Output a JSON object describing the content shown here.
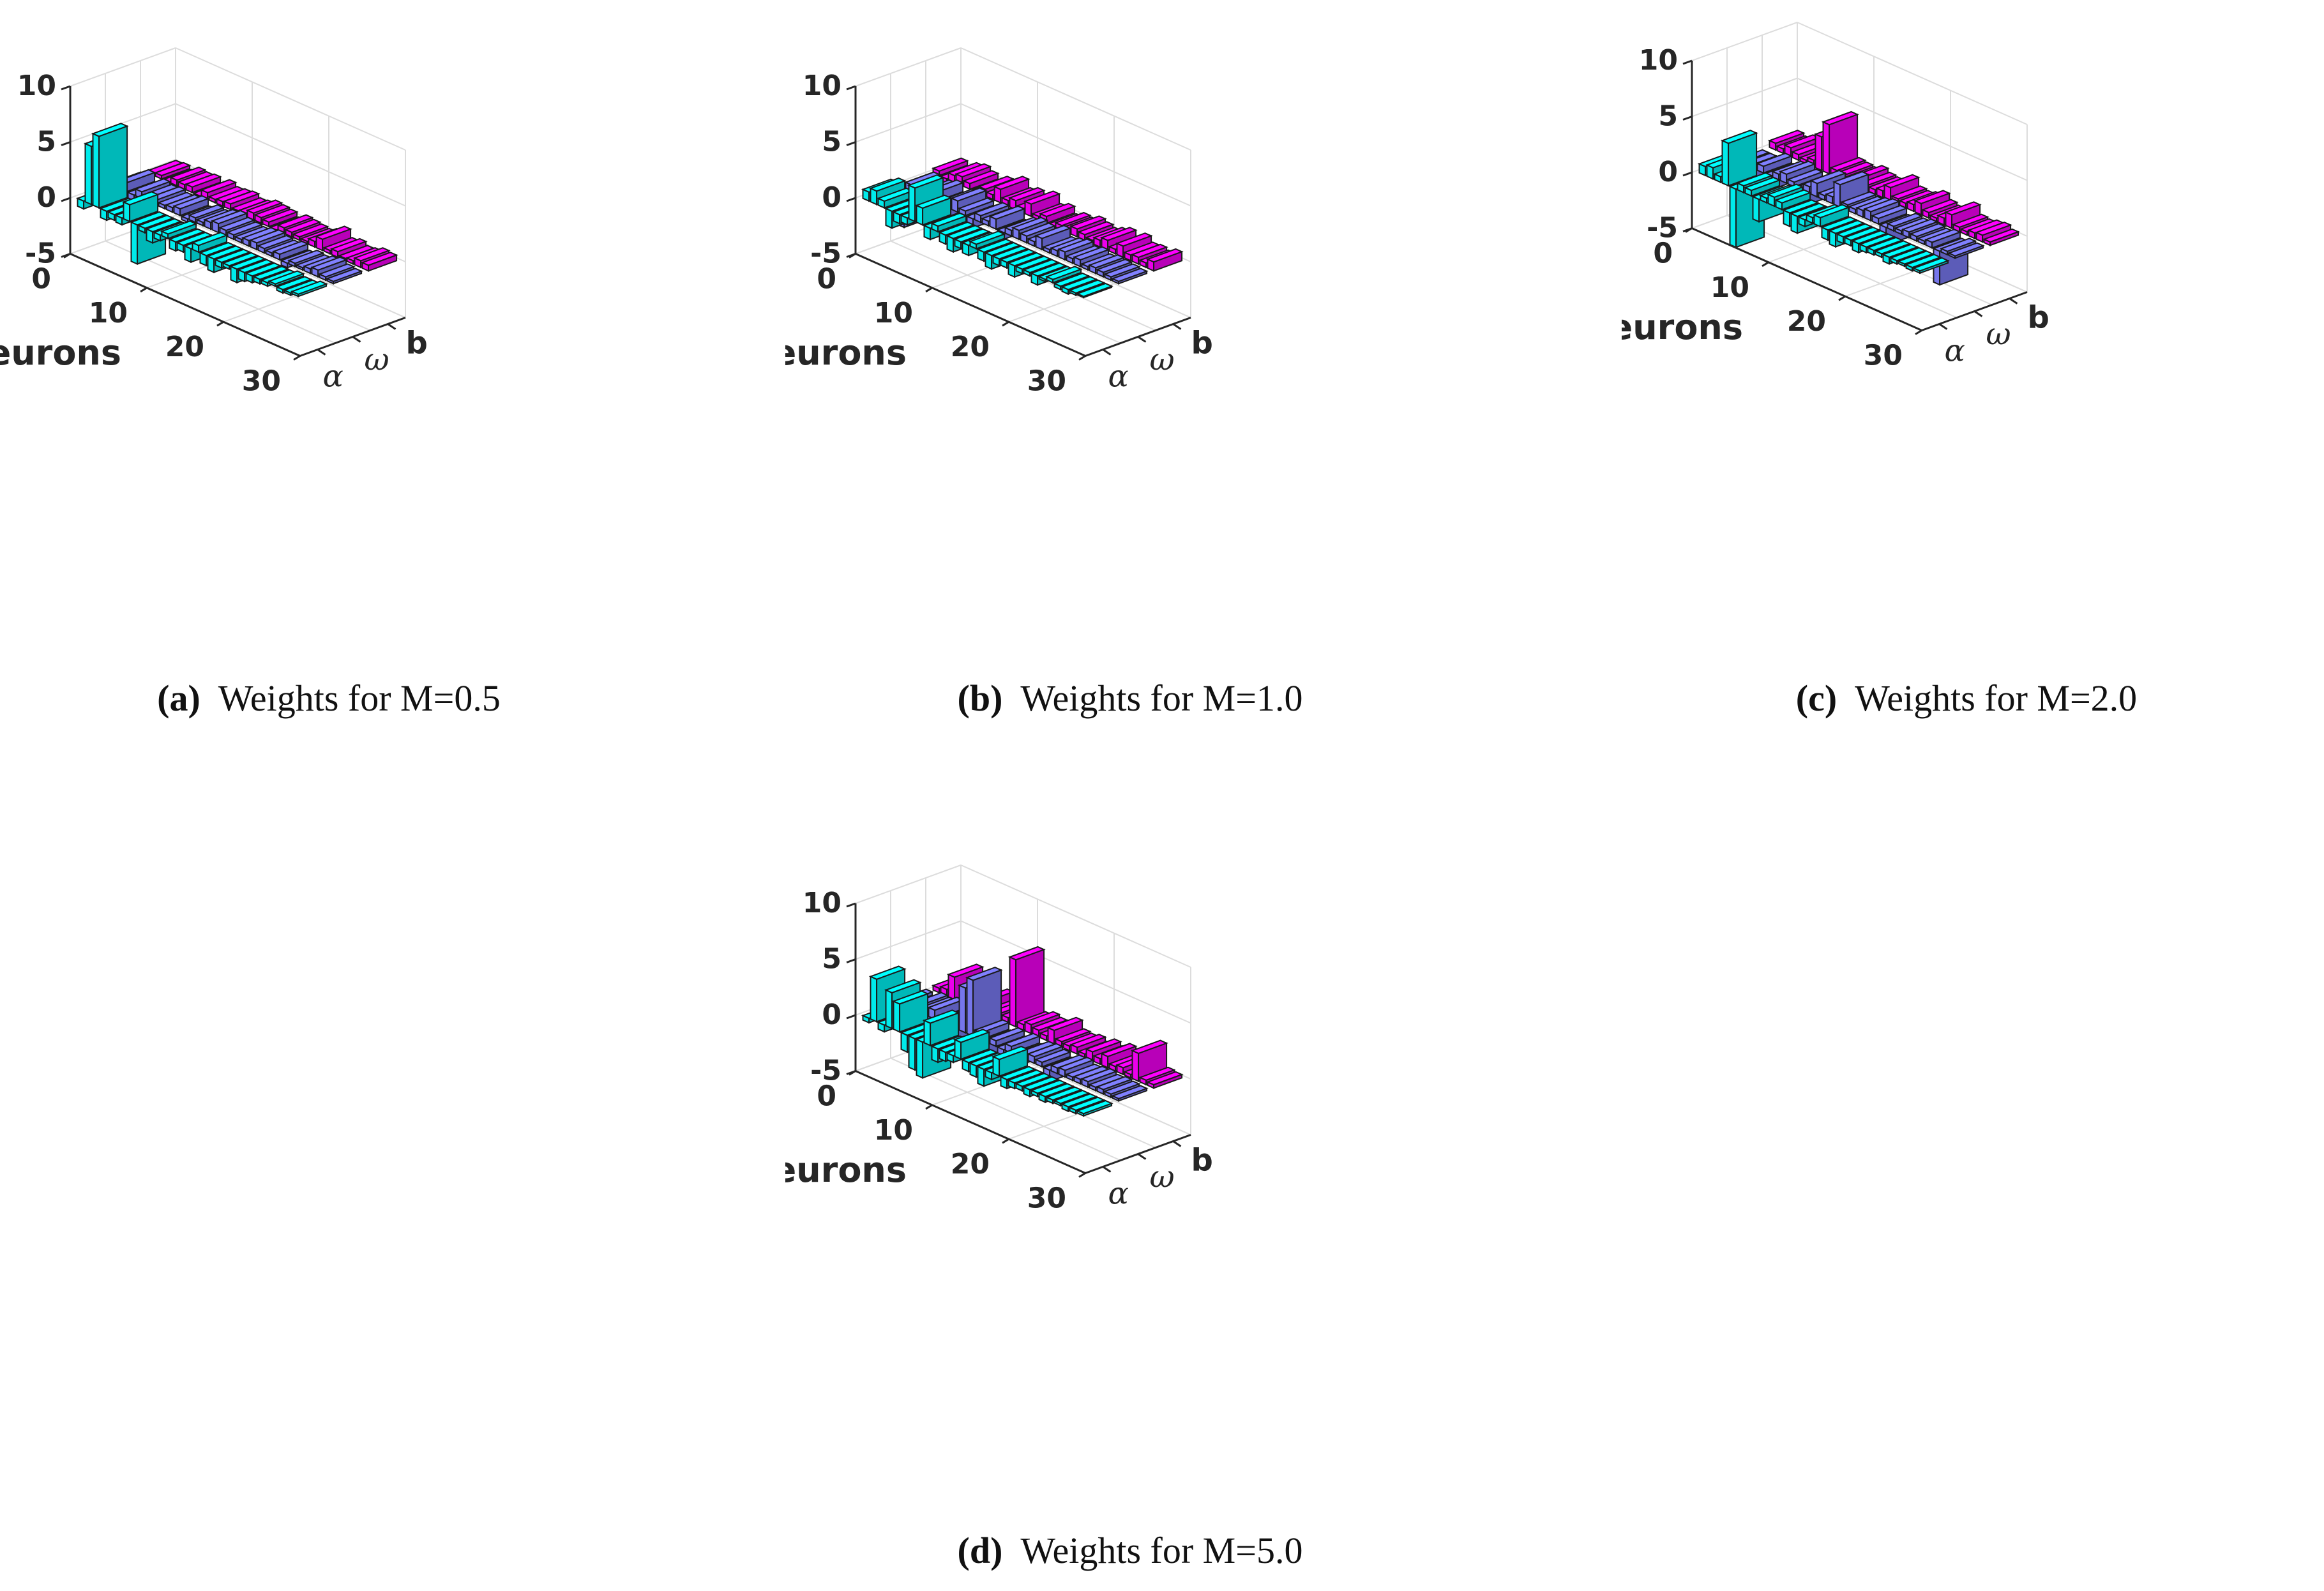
{
  "colors": {
    "magenta": "#ff00ff",
    "purple": "#8080ff",
    "cyan": "#00ffff",
    "axis": "#262626",
    "grid": "#dcdcdc",
    "edge": "#1a1a1a"
  },
  "chart_data": [
    {
      "type": "bar3d",
      "caption_label": "(a)",
      "caption_text": "Weights for M=0.5",
      "xlabel": "Neurons",
      "x_ticks": [
        "0",
        "10",
        "20",
        "30"
      ],
      "y_ticks": [
        "-5",
        "0",
        "5",
        "10"
      ],
      "series_labels": [
        "α",
        "ω",
        "b"
      ],
      "zlim": [
        -5,
        10
      ],
      "neuron_range": [
        0,
        30
      ],
      "series": [
        {
          "name": "b",
          "color": "magenta",
          "values": [
            0.2,
            0.3,
            -0.8,
            0.5,
            0.4,
            0.5,
            -0.4,
            0.6,
            0.3,
            0.4,
            0.5,
            0.2,
            0.3,
            0.6,
            0.5,
            0.4,
            -0.6,
            0.5,
            0.4,
            0.3,
            0.2,
            0.5,
            1.0,
            0.3,
            0.5,
            0.2,
            0.3,
            0.6,
            0.5
          ]
        },
        {
          "name": "ω",
          "color": "purple",
          "values": [
            0.3,
            0.8,
            -0.5,
            0.6,
            0.4,
            0.5,
            0.3,
            0.4,
            0.6,
            -0.3,
            0.4,
            0.3,
            0.6,
            0.8,
            0.5,
            0.4,
            0.3,
            0.5,
            0.6,
            0.4,
            0.3,
            0.5,
            -0.4,
            0.3,
            0.2,
            0.4,
            0.6,
            0.3,
            0.2
          ]
        },
        {
          "name": "α",
          "color": "cyan",
          "values": [
            -0.7,
            5.2,
            6.4,
            -0.8,
            -0.5,
            -0.6,
            1.5,
            -3.5,
            -0.4,
            -1.0,
            -0.5,
            0.4,
            -0.8,
            -0.6,
            -1.2,
            0.6,
            -0.9,
            -1.2,
            -0.5,
            -0.3,
            -1.2,
            -0.8,
            -0.6,
            -0.4,
            -0.3,
            0.2,
            -0.3,
            -0.2,
            0.2
          ]
        }
      ]
    },
    {
      "type": "bar3d",
      "caption_label": "(b)",
      "caption_text": "Weights for M=1.0",
      "xlabel": "Neurons",
      "x_ticks": [
        "0",
        "10",
        "20",
        "30"
      ],
      "y_ticks": [
        "-5",
        "0",
        "5",
        "10"
      ],
      "series_labels": [
        "α",
        "ω",
        "b"
      ],
      "zlim": [
        -5,
        10
      ],
      "neuron_range": [
        0,
        30
      ],
      "series": [
        {
          "name": "b",
          "color": "magenta",
          "values": [
            0.4,
            -0.6,
            0.6,
            0.8,
            0.5,
            -0.9,
            0.6,
            0.4,
            1.2,
            0.5,
            0.8,
            0.4,
            1.1,
            0.3,
            0.6,
            -0.5,
            0.4,
            0.3,
            0.7,
            0.5,
            0.3,
            0.6,
            0.9,
            0.4,
            1.0,
            0.5,
            0.6,
            0.4,
            0.8
          ]
        },
        {
          "name": "ω",
          "color": "purple",
          "values": [
            -3.5,
            0.6,
            -1.8,
            0.5,
            0.8,
            -1.2,
            0.6,
            1.0,
            0.4,
            -0.8,
            0.6,
            0.4,
            0.9,
            -0.6,
            0.5,
            0.8,
            0.6,
            0.4,
            1.0,
            0.3,
            0.5,
            0.7,
            0.4,
            0.6,
            0.3,
            0.5,
            0.4,
            0.3,
            0.2
          ]
        },
        {
          "name": "α",
          "color": "cyan",
          "values": [
            0.8,
            1.2,
            0.6,
            -1.5,
            -0.8,
            -0.6,
            3.0,
            1.5,
            -1.0,
            0.5,
            -0.8,
            -1.2,
            -0.6,
            -0.9,
            0.4,
            -0.8,
            -1.2,
            -0.6,
            -0.5,
            -1.0,
            -0.4,
            -0.3,
            -0.8,
            -0.2,
            0.3,
            -0.3,
            -0.4,
            -0.2,
            -0.1
          ]
        }
      ]
    },
    {
      "type": "bar3d",
      "caption_label": "(c)",
      "caption_text": "Weights for M=2.0",
      "xlabel": "Neurons",
      "x_ticks": [
        "0",
        "10",
        "20",
        "30"
      ],
      "y_ticks": [
        "-5",
        "0",
        "5",
        "10"
      ],
      "series_labels": [
        "α",
        "ω",
        "b"
      ],
      "zlim": [
        -5,
        10
      ],
      "neuron_range": [
        0,
        30
      ],
      "series": [
        {
          "name": "b",
          "color": "magenta",
          "values": [
            0.6,
            0.4,
            0.8,
            0.5,
            0.3,
            0.6,
            3.0,
            4.4,
            0.6,
            0.5,
            0.4,
            0.8,
            0.5,
            0.4,
            0.6,
            1.2,
            0.5,
            0.4,
            0.6,
            1.0,
            0.5,
            0.3,
            0.6,
            1.2,
            0.4,
            0.3,
            0.5,
            0.6,
            0.3
          ]
        },
        {
          "name": "ω",
          "color": "purple",
          "values": [
            -0.8,
            -4.5,
            -2.0,
            0.6,
            -1.2,
            0.5,
            0.8,
            0.4,
            -1.5,
            0.6,
            1.2,
            0.4,
            0.6,
            2.0,
            0.5,
            0.4,
            0.6,
            0.8,
            0.5,
            -1.6,
            0.4,
            0.3,
            0.5,
            0.4,
            0.3,
            0.5,
            -3.0,
            0.3,
            0.2
          ]
        },
        {
          "name": "α",
          "color": "cyan",
          "values": [
            0.8,
            1.0,
            0.5,
            3.8,
            -5.2,
            0.6,
            0.5,
            -2.0,
            0.4,
            0.8,
            0.6,
            -1.2,
            -1.5,
            -0.6,
            0.5,
            0.8,
            -0.9,
            -1.2,
            -0.6,
            -0.5,
            -0.8,
            -0.5,
            -0.4,
            -0.3,
            -0.6,
            -0.3,
            -0.2,
            -0.3,
            -0.2
          ]
        }
      ]
    },
    {
      "type": "bar3d",
      "caption_label": "(d)",
      "caption_text": "Weights for M=5.0",
      "xlabel": "Neurons",
      "x_ticks": [
        "0",
        "10",
        "20",
        "30"
      ],
      "y_ticks": [
        "-5",
        "0",
        "5",
        "10"
      ],
      "series_labels": [
        "α",
        "ω",
        "b"
      ],
      "zlim": [
        -5,
        10
      ],
      "neuron_range": [
        0,
        30
      ],
      "series": [
        {
          "name": "b",
          "color": "magenta",
          "values": [
            0.4,
            0.6,
            2.0,
            -2.5,
            0.8,
            0.5,
            1.0,
            0.4,
            0.6,
            0.5,
            6.0,
            0.5,
            0.8,
            0.6,
            0.4,
            1.2,
            0.5,
            0.4,
            0.6,
            0.3,
            0.8,
            0.5,
            1.0,
            0.4,
            0.6,
            0.3,
            2.5,
            0.4,
            0.3
          ]
        },
        {
          "name": "ω",
          "color": "purple",
          "values": [
            0.3,
            -2.0,
            0.6,
            0.5,
            0.8,
            -1.5,
            -2.5,
            0.5,
            4.0,
            5.0,
            0.6,
            -2.0,
            0.5,
            -1.5,
            0.6,
            -0.8,
            0.5,
            0.6,
            0.4,
            -1.0,
            0.5,
            0.6,
            0.3,
            0.4,
            0.5,
            0.3,
            0.4,
            0.3,
            0.2
          ]
        },
        {
          "name": "α",
          "color": "cyan",
          "values": [
            -0.4,
            3.8,
            -0.6,
            3.2,
            2.5,
            -1.5,
            -2.8,
            -3.2,
            2.0,
            -1.2,
            -0.8,
            -0.6,
            1.5,
            -0.8,
            -1.0,
            -1.5,
            -0.6,
            1.5,
            -0.8,
            -0.5,
            -0.4,
            -0.6,
            -0.3,
            -0.5,
            -0.3,
            -0.2,
            -0.4,
            -0.3,
            -0.2
          ]
        }
      ]
    }
  ]
}
